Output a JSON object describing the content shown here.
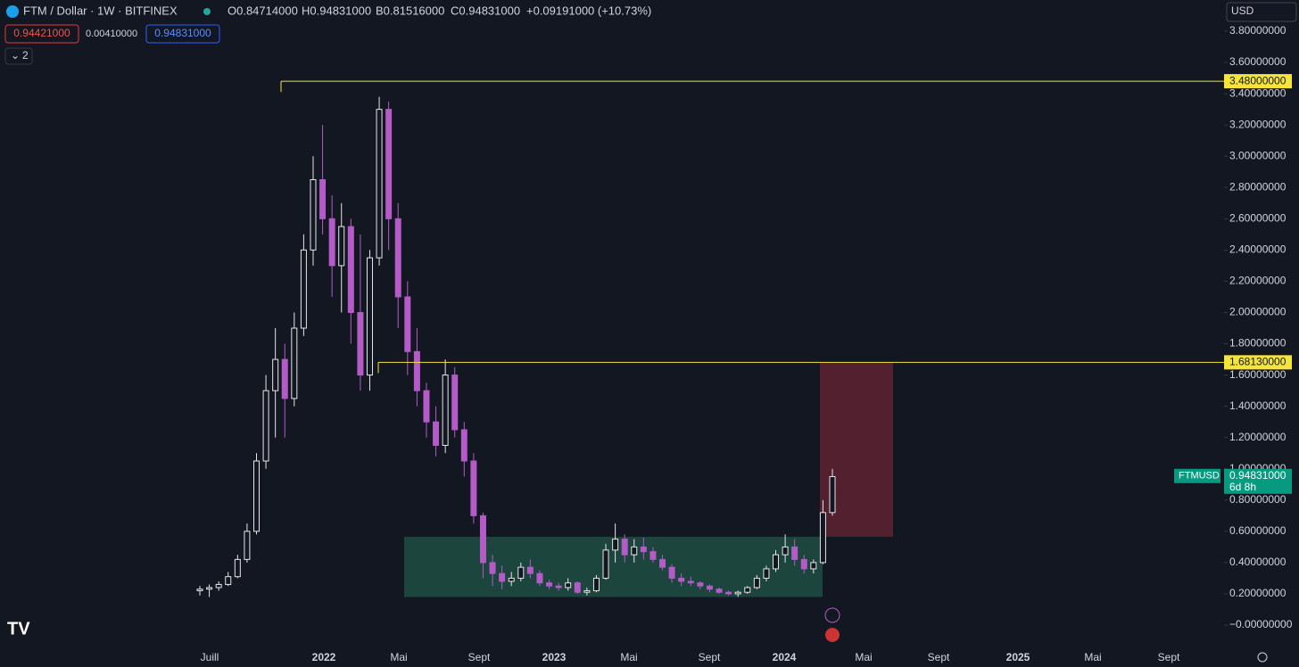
{
  "header": {
    "symbol": "FTM / Dollar · 1W · BITFINEX",
    "open": "O0.84714000",
    "high": "H0.94831000",
    "low": "B0.81516000",
    "close": "C0.94831000",
    "change": "+0.09191000 (+10.73%)",
    "sell": "0.94421000",
    "spread": "0.00410000",
    "buy": "0.94831000",
    "indicators": "2",
    "currency": "USD"
  },
  "chart_data": {
    "type": "candlestick",
    "up_color": "#e6e6e6",
    "down_color": "#b45bc8",
    "level_color": "#f5e43a",
    "ylim": [
      -0.1,
      3.9
    ],
    "yticks": [
      {
        "value": 0,
        "label": "−0.00000000"
      },
      {
        "value": 0.2,
        "label": "0.20000000"
      },
      {
        "value": 0.4,
        "label": "0.40000000"
      },
      {
        "value": 0.6,
        "label": "0.60000000"
      },
      {
        "value": 0.8,
        "label": "0.80000000"
      },
      {
        "value": 1.0,
        "label": "1.00000000"
      },
      {
        "value": 1.2,
        "label": "1.20000000"
      },
      {
        "value": 1.4,
        "label": "1.40000000"
      },
      {
        "value": 1.6,
        "label": "1.60000000"
      },
      {
        "value": 1.8,
        "label": "1.80000000"
      },
      {
        "value": 2.0,
        "label": "2.00000000"
      },
      {
        "value": 2.2,
        "label": "2.20000000"
      },
      {
        "value": 2.4,
        "label": "2.40000000"
      },
      {
        "value": 2.6,
        "label": "2.60000000"
      },
      {
        "value": 2.8,
        "label": "2.80000000"
      },
      {
        "value": 3.0,
        "label": "3.00000000"
      },
      {
        "value": 3.2,
        "label": "3.20000000"
      },
      {
        "value": 3.4,
        "label": "3.40000000"
      },
      {
        "value": 3.6,
        "label": "3.60000000"
      },
      {
        "value": 3.8,
        "label": "3.80000000"
      }
    ],
    "x_labels": [
      "Juill",
      "2022",
      "Mai",
      "Sept",
      "2023",
      "Mai",
      "Sept",
      "2024",
      "Mai",
      "Sept",
      "2025",
      "Mai",
      "Sept"
    ],
    "levels": [
      {
        "value": 3.48,
        "label": "3.48000000"
      },
      {
        "value": 1.6813,
        "label": "1.68130000"
      }
    ],
    "zones": [
      {
        "low": 0.18,
        "high": 0.565,
        "color": "#1d4a40"
      },
      {
        "low": 0.565,
        "high": 1.6813,
        "color": "#5a2130"
      }
    ],
    "last": {
      "symbol": "FTMUSD",
      "value": 0.94831,
      "label": "0.94831000",
      "countdown": "6d 8h"
    },
    "candles": [
      [
        0.22,
        0.25,
        0.19,
        0.23
      ],
      [
        0.23,
        0.26,
        0.18,
        0.24
      ],
      [
        0.24,
        0.28,
        0.22,
        0.26
      ],
      [
        0.26,
        0.34,
        0.25,
        0.31
      ],
      [
        0.31,
        0.45,
        0.3,
        0.42
      ],
      [
        0.42,
        0.65,
        0.4,
        0.6
      ],
      [
        0.6,
        1.1,
        0.58,
        1.05
      ],
      [
        1.05,
        1.6,
        1.0,
        1.5
      ],
      [
        1.5,
        1.9,
        1.2,
        1.7
      ],
      [
        1.7,
        1.8,
        1.2,
        1.45
      ],
      [
        1.45,
        2.0,
        1.4,
        1.9
      ],
      [
        1.9,
        2.5,
        1.85,
        2.4
      ],
      [
        2.4,
        3.0,
        2.3,
        2.85
      ],
      [
        2.85,
        3.2,
        2.5,
        2.6
      ],
      [
        2.6,
        2.75,
        2.1,
        2.3
      ],
      [
        2.3,
        2.7,
        2.0,
        2.55
      ],
      [
        2.55,
        2.6,
        1.8,
        2.0
      ],
      [
        2.0,
        2.5,
        1.5,
        1.6
      ],
      [
        1.6,
        2.4,
        1.5,
        2.35
      ],
      [
        2.35,
        3.38,
        2.3,
        3.3
      ],
      [
        3.3,
        3.35,
        2.4,
        2.6
      ],
      [
        2.6,
        2.7,
        1.9,
        2.1
      ],
      [
        2.1,
        2.2,
        1.6,
        1.75
      ],
      [
        1.75,
        1.9,
        1.4,
        1.5
      ],
      [
        1.5,
        1.55,
        1.2,
        1.3
      ],
      [
        1.3,
        1.4,
        1.08,
        1.15
      ],
      [
        1.15,
        1.7,
        1.1,
        1.6
      ],
      [
        1.6,
        1.65,
        1.2,
        1.25
      ],
      [
        1.25,
        1.3,
        0.95,
        1.05
      ],
      [
        1.05,
        1.1,
        0.65,
        0.7
      ],
      [
        0.7,
        0.72,
        0.3,
        0.4
      ],
      [
        0.4,
        0.45,
        0.25,
        0.33
      ],
      [
        0.33,
        0.38,
        0.23,
        0.28
      ],
      [
        0.28,
        0.34,
        0.25,
        0.3
      ],
      [
        0.3,
        0.4,
        0.28,
        0.37
      ],
      [
        0.37,
        0.42,
        0.3,
        0.33
      ],
      [
        0.33,
        0.35,
        0.25,
        0.27
      ],
      [
        0.27,
        0.29,
        0.23,
        0.25
      ],
      [
        0.25,
        0.27,
        0.22,
        0.24
      ],
      [
        0.24,
        0.3,
        0.22,
        0.27
      ],
      [
        0.27,
        0.28,
        0.2,
        0.21
      ],
      [
        0.21,
        0.24,
        0.19,
        0.22
      ],
      [
        0.22,
        0.32,
        0.21,
        0.3
      ],
      [
        0.3,
        0.52,
        0.29,
        0.48
      ],
      [
        0.48,
        0.65,
        0.4,
        0.55
      ],
      [
        0.55,
        0.58,
        0.4,
        0.45
      ],
      [
        0.45,
        0.55,
        0.4,
        0.5
      ],
      [
        0.5,
        0.56,
        0.42,
        0.47
      ],
      [
        0.47,
        0.5,
        0.4,
        0.42
      ],
      [
        0.42,
        0.45,
        0.35,
        0.37
      ],
      [
        0.37,
        0.39,
        0.27,
        0.3
      ],
      [
        0.3,
        0.33,
        0.25,
        0.28
      ],
      [
        0.28,
        0.31,
        0.25,
        0.27
      ],
      [
        0.27,
        0.28,
        0.23,
        0.25
      ],
      [
        0.25,
        0.26,
        0.21,
        0.23
      ],
      [
        0.23,
        0.24,
        0.2,
        0.21
      ],
      [
        0.21,
        0.22,
        0.19,
        0.2
      ],
      [
        0.2,
        0.22,
        0.18,
        0.21
      ],
      [
        0.21,
        0.25,
        0.2,
        0.24
      ],
      [
        0.24,
        0.32,
        0.23,
        0.3
      ],
      [
        0.3,
        0.38,
        0.28,
        0.36
      ],
      [
        0.36,
        0.48,
        0.34,
        0.45
      ],
      [
        0.45,
        0.58,
        0.4,
        0.5
      ],
      [
        0.5,
        0.55,
        0.38,
        0.42
      ],
      [
        0.42,
        0.45,
        0.33,
        0.36
      ],
      [
        0.36,
        0.42,
        0.33,
        0.4
      ],
      [
        0.4,
        0.8,
        0.39,
        0.72
      ],
      [
        0.72,
        1.0,
        0.7,
        0.95
      ]
    ]
  }
}
